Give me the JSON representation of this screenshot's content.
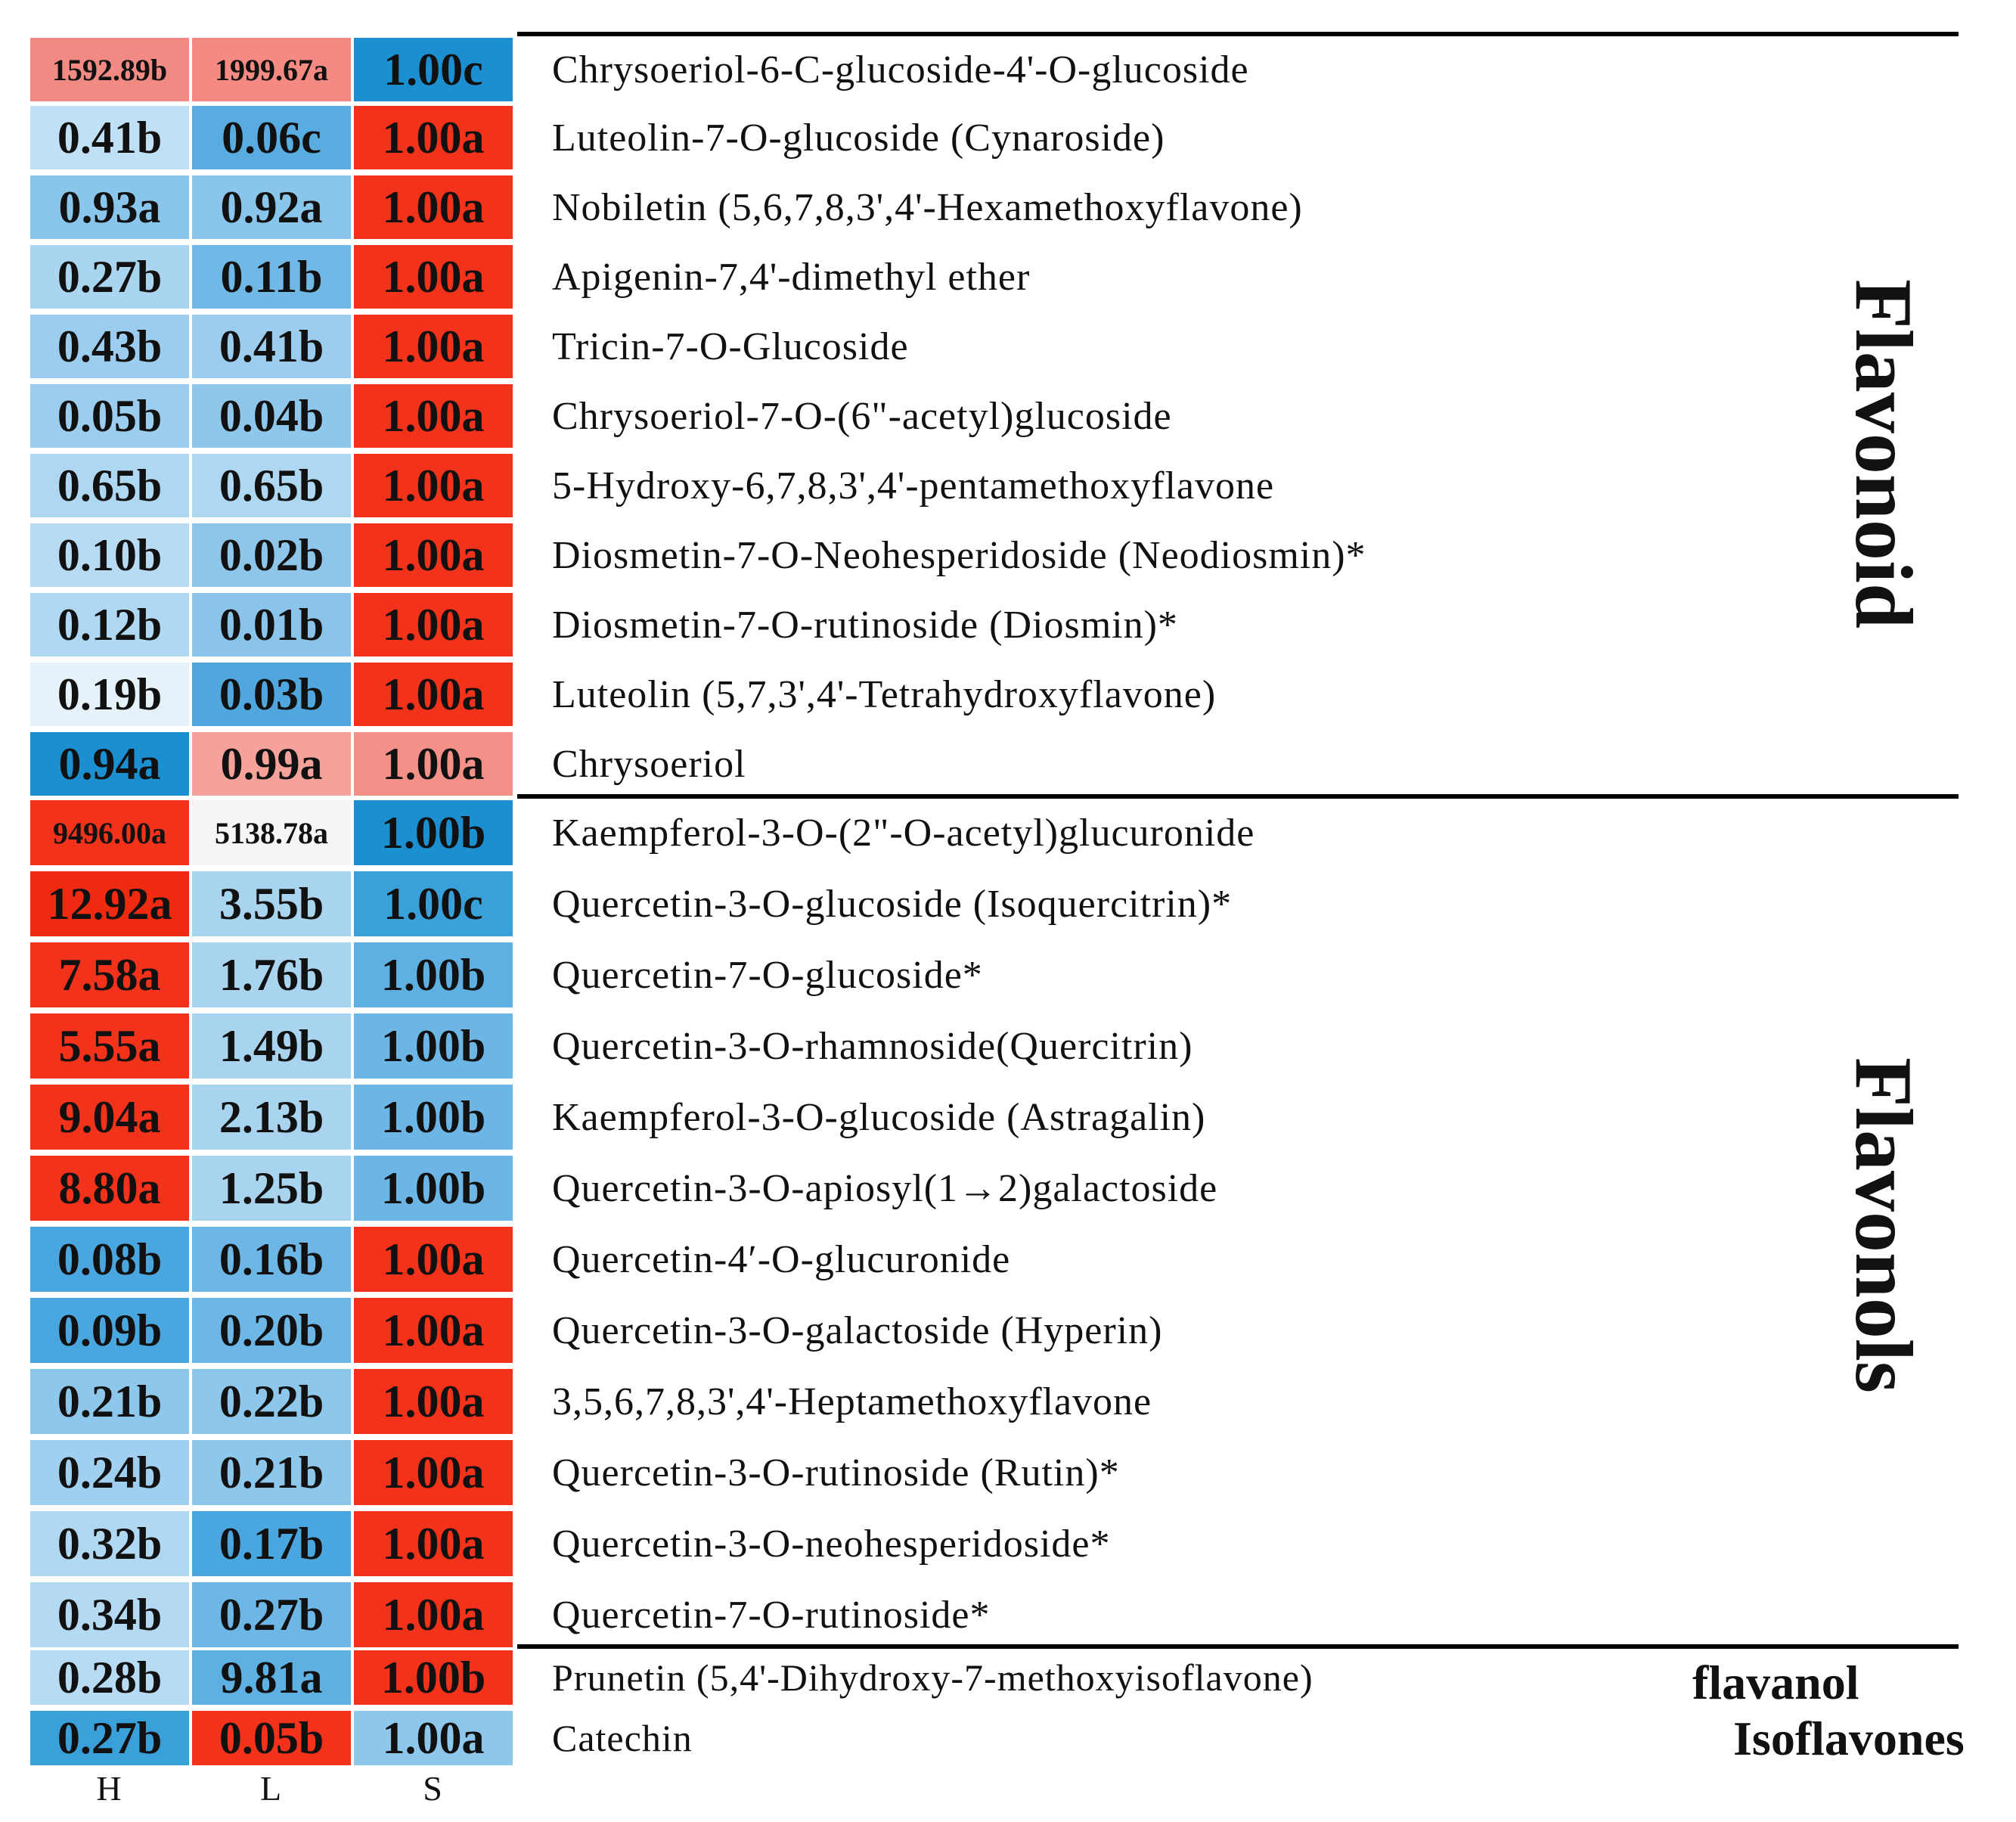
{
  "chart_data": {
    "type": "heatmap",
    "columns": [
      "H",
      "L",
      "S"
    ],
    "rows": [
      {
        "name": "Chrysoeriol-6-C-glucoside-4'-O-glucoside",
        "values": [
          1592.89,
          1999.67,
          1.0
        ],
        "labels": [
          "1592.89b",
          "1999.67a",
          "1.00c"
        ],
        "colors": [
          "#f08a82",
          "#f58a82",
          "#1b8fd0"
        ]
      },
      {
        "name": "Luteolin-7-O-glucoside (Cynaroside)",
        "values": [
          0.41,
          0.06,
          1.0
        ],
        "labels": [
          "0.41b",
          "0.06c",
          "1.00a"
        ],
        "colors": [
          "#bfe0f5",
          "#58ace0",
          "#f2321a"
        ]
      },
      {
        "name": "Nobiletin (5,6,7,8,3',4'-Hexamethoxyflavone)",
        "values": [
          0.93,
          0.92,
          1.0
        ],
        "labels": [
          "0.93a",
          "0.92a",
          "1.00a"
        ],
        "colors": [
          "#8ac5eb",
          "#8ac5eb",
          "#f2321a"
        ]
      },
      {
        "name": "Apigenin-7,4'-dimethyl ether",
        "values": [
          0.27,
          0.11,
          1.0
        ],
        "labels": [
          "0.27b",
          "0.11b",
          "1.00a"
        ],
        "colors": [
          "#aad5f1",
          "#70b8e6",
          "#f2321a"
        ]
      },
      {
        "name": "Tricin-7-O-Glucoside",
        "values": [
          0.43,
          0.41,
          1.0
        ],
        "labels": [
          "0.43b",
          "0.41b",
          "1.00a"
        ],
        "colors": [
          "#9dcdee",
          "#9dcdee",
          "#f2321a"
        ]
      },
      {
        "name": "Chrysoeriol-7-O-(6\"-acetyl)glucoside",
        "values": [
          0.05,
          0.04,
          1.0
        ],
        "labels": [
          "0.05b",
          "0.04b",
          "1.00a"
        ],
        "colors": [
          "#9acdee",
          "#8fc7ec",
          "#f2321a"
        ]
      },
      {
        "name": "5-Hydroxy-6,7,8,3',4'-pentamethoxyflavone",
        "values": [
          0.65,
          0.65,
          1.0
        ],
        "labels": [
          "0.65b",
          "0.65b",
          "1.00a"
        ],
        "colors": [
          "#aed7f2",
          "#aed7f2",
          "#f2321a"
        ]
      },
      {
        "name": "Diosmetin-7-O-Neohesperidoside (Neodiosmin)*",
        "values": [
          0.1,
          0.02,
          1.0
        ],
        "labels": [
          "0.10b",
          "0.02b",
          "1.00a"
        ],
        "colors": [
          "#b6dbf3",
          "#8ec6eb",
          "#f2321a"
        ]
      },
      {
        "name": "Diosmetin-7-O-rutinoside (Diosmin)*",
        "values": [
          0.12,
          0.01,
          1.0
        ],
        "labels": [
          "0.12b",
          "0.01b",
          "1.00a"
        ],
        "colors": [
          "#b0d8f2",
          "#8ac4ea",
          "#f2321a"
        ]
      },
      {
        "name": "Luteolin (5,7,3',4'-Tetrahydroxyflavone)",
        "values": [
          0.19,
          0.03,
          1.0
        ],
        "labels": [
          "0.19b",
          "0.03b",
          "1.00a"
        ],
        "colors": [
          "#e6f2fa",
          "#4fa7de",
          "#f2321a"
        ]
      },
      {
        "name": "Chrysoeriol",
        "values": [
          0.94,
          0.99,
          1.0
        ],
        "labels": [
          "0.94a",
          "0.99a",
          "1.00a"
        ],
        "colors": [
          "#1b8fd0",
          "#f5a29b",
          "#f39088"
        ]
      },
      {
        "name": "Kaempferol-3-O-(2\"-O-acetyl)glucuronide",
        "values": [
          9496.0,
          5138.78,
          1.0
        ],
        "labels": [
          "9496.00a",
          "5138.78a",
          "1.00b"
        ],
        "colors": [
          "#f2321a",
          "#f4f5f7",
          "#1b8fd0"
        ]
      },
      {
        "name": "Quercetin-3-O-glucoside (Isoquercitrin)*",
        "values": [
          12.92,
          3.55,
          1.0
        ],
        "labels": [
          "12.92a",
          "3.55b",
          "1.00c"
        ],
        "colors": [
          "#ee2b10",
          "#a8d4f0",
          "#3aa0da"
        ]
      },
      {
        "name": "Quercetin-7-O-glucoside*",
        "values": [
          7.58,
          1.76,
          1.0
        ],
        "labels": [
          "7.58a",
          "1.76b",
          "1.00b"
        ],
        "colors": [
          "#f2321a",
          "#a8d4f0",
          "#5eb0e2"
        ]
      },
      {
        "name": "Quercetin-3-O-rhamnoside(Quercitrin)",
        "values": [
          5.55,
          1.49,
          1.0
        ],
        "labels": [
          "5.55a",
          "1.49b",
          "1.00b"
        ],
        "colors": [
          "#f2321a",
          "#a8d4f0",
          "#6cb6e5"
        ]
      },
      {
        "name": "Kaempferol-3-O-glucoside (Astragalin)",
        "values": [
          9.04,
          2.13,
          1.0
        ],
        "labels": [
          "9.04a",
          "2.13b",
          "1.00b"
        ],
        "colors": [
          "#f2321a",
          "#a8d4f0",
          "#6cb6e5"
        ]
      },
      {
        "name": "Quercetin-3-O-apiosyl(1→2)galactoside",
        "values": [
          8.8,
          1.25,
          1.0
        ],
        "labels": [
          "8.80a",
          "1.25b",
          "1.00b"
        ],
        "colors": [
          "#f2321a",
          "#a8d4f0",
          "#6cb6e5"
        ]
      },
      {
        "name": "Quercetin-4′-O-glucuronide",
        "values": [
          0.08,
          0.16,
          1.0
        ],
        "labels": [
          "0.08b",
          "0.16b",
          "1.00a"
        ],
        "colors": [
          "#4aa6de",
          "#6db7e6",
          "#f2321a"
        ]
      },
      {
        "name": "Quercetin-3-O-galactoside (Hyperin)",
        "values": [
          0.09,
          0.2,
          1.0
        ],
        "labels": [
          "0.09b",
          "0.20b",
          "1.00a"
        ],
        "colors": [
          "#4aa6de",
          "#6db7e6",
          "#f2321a"
        ]
      },
      {
        "name": "3,5,6,7,8,3',4'-Heptamethoxyflavone",
        "values": [
          0.21,
          0.22,
          1.0
        ],
        "labels": [
          "0.21b",
          "0.22b",
          "1.00a"
        ],
        "colors": [
          "#8ec7ec",
          "#8ec7ec",
          "#f2321a"
        ]
      },
      {
        "name": "Quercetin-3-O-rutinoside (Rutin)*",
        "values": [
          0.24,
          0.21,
          1.0
        ],
        "labels": [
          "0.24b",
          "0.21b",
          "1.00a"
        ],
        "colors": [
          "#a0cfef",
          "#8ec7ec",
          "#f2321a"
        ]
      },
      {
        "name": "Quercetin-3-O-neohesperidoside*",
        "values": [
          0.32,
          0.17,
          1.0
        ],
        "labels": [
          "0.32b",
          "0.17b",
          "1.00a"
        ],
        "colors": [
          "#b0d8f2",
          "#4aa6de",
          "#f2321a"
        ]
      },
      {
        "name": "Quercetin-7-O-rutinoside*",
        "values": [
          0.34,
          0.27,
          1.0
        ],
        "labels": [
          "0.34b",
          "0.27b",
          "1.00a"
        ],
        "colors": [
          "#b3d9f3",
          "#6db7e6",
          "#f2321a"
        ]
      },
      {
        "name": "Prunetin (5,4'-Dihydroxy-7-methoxyisoflavone)",
        "values": [
          0.28,
          9.81,
          1.0
        ],
        "labels": [
          "0.28b",
          "9.81a",
          "1.00b"
        ],
        "colors": [
          "#b6dbf3",
          "#5eb0e2",
          "#f2321a"
        ]
      },
      {
        "name": "Catechin",
        "values": [
          0.27,
          0.05,
          1.0
        ],
        "labels": [
          "0.27b",
          "0.05b",
          "1.00a"
        ],
        "colors": [
          "#3aa0da",
          "#f2321a",
          "#8ec7ec"
        ]
      }
    ],
    "groups": [
      {
        "name": "Flavonoid",
        "first_row": 0,
        "last_row": 10,
        "orientation": "vertical"
      },
      {
        "name": "Flavonols",
        "first_row": 11,
        "last_row": 22,
        "orientation": "vertical"
      },
      {
        "name": "flavanol",
        "first_row": 23,
        "last_row": 23,
        "orientation": "horizontal"
      },
      {
        "name": "Isoflavones",
        "first_row": 24,
        "last_row": 24,
        "orientation": "horizontal"
      }
    ],
    "title": "",
    "xlabel": "",
    "ylabel": ""
  }
}
